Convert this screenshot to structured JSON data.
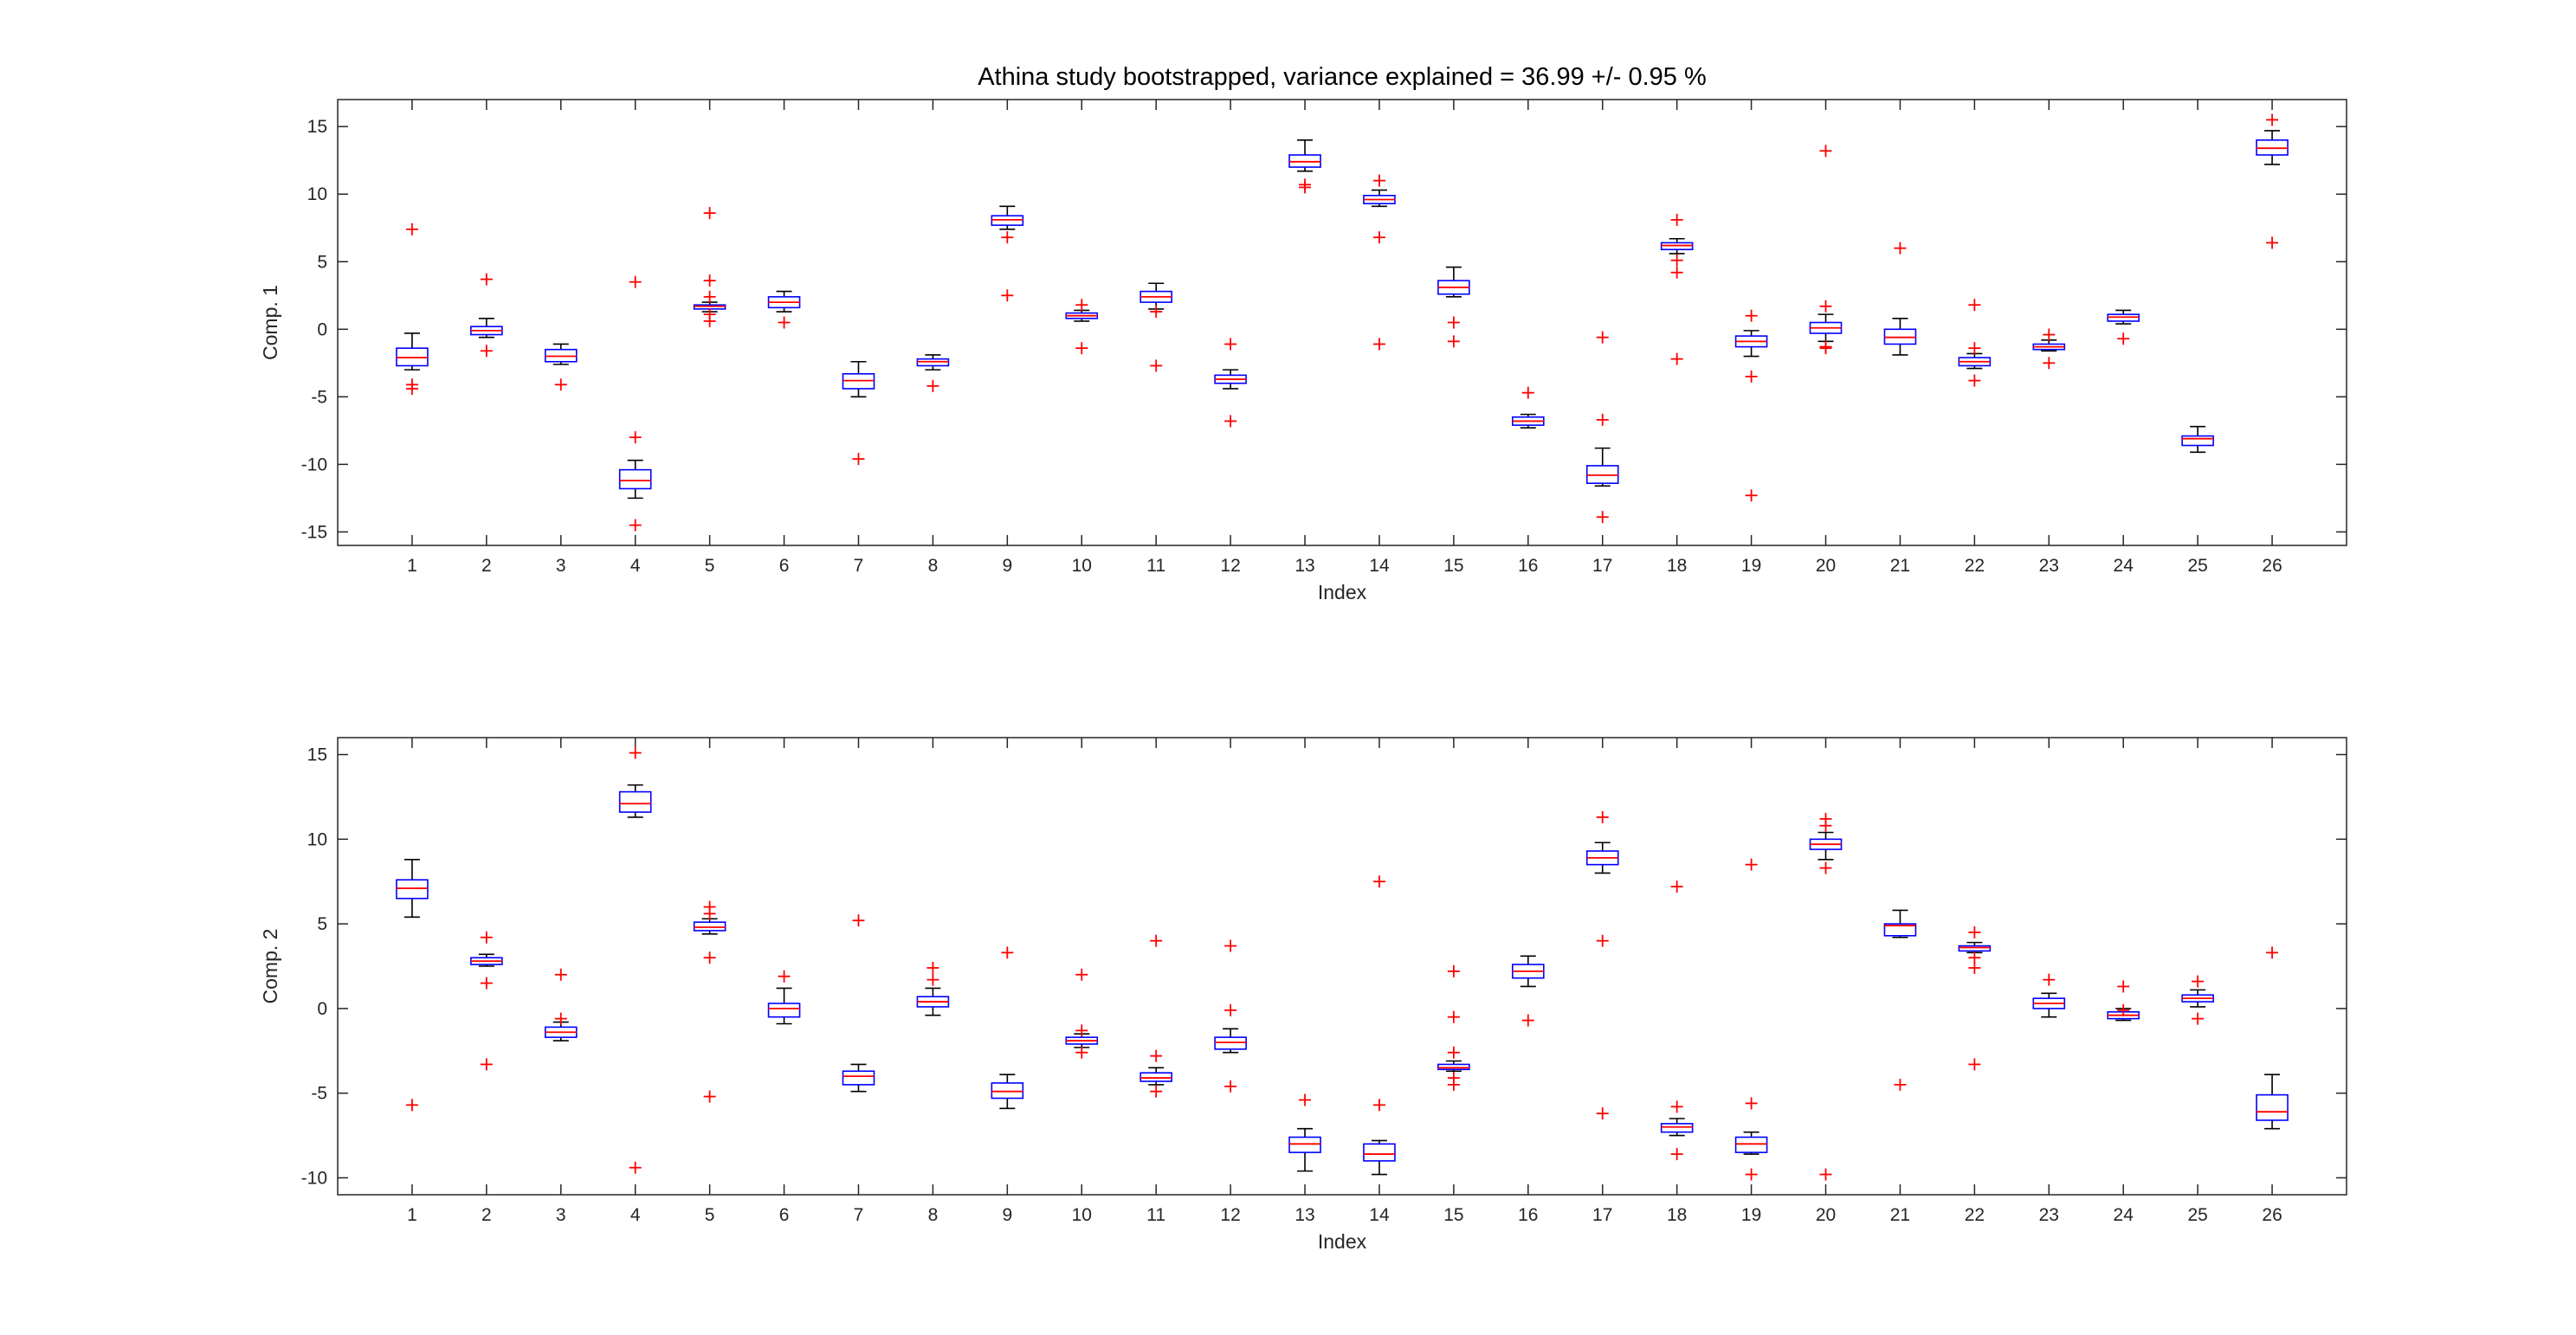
{
  "chart_data": [
    {
      "type": "box",
      "title": "Athina study bootstrapped, variance explained = 36.99 +/- 0.95 %",
      "xlabel": "Index",
      "ylabel": "Comp. 1",
      "ylim": [
        -16,
        17
      ],
      "yticks": [
        -15,
        -10,
        -5,
        0,
        5,
        10,
        15
      ],
      "categories": [
        "1",
        "2",
        "3",
        "4",
        "5",
        "6",
        "7",
        "8",
        "9",
        "10",
        "11",
        "12",
        "13",
        "14",
        "15",
        "16",
        "17",
        "18",
        "19",
        "20",
        "21",
        "22",
        "23",
        "24",
        "25",
        "26"
      ],
      "boxes": [
        {
          "lw": -3.0,
          "q1": -2.7,
          "median": -2.1,
          "q3": -1.4,
          "uw": -0.3,
          "outliers": [
            7.4,
            -4.1,
            -4.4
          ]
        },
        {
          "lw": -0.6,
          "q1": -0.4,
          "median": -0.1,
          "q3": 0.2,
          "uw": 0.8,
          "outliers": [
            3.7,
            -1.6
          ]
        },
        {
          "lw": -2.6,
          "q1": -2.4,
          "median": -2.0,
          "q3": -1.5,
          "uw": -1.1,
          "outliers": [
            -4.1
          ]
        },
        {
          "lw": -12.5,
          "q1": -11.8,
          "median": -11.2,
          "q3": -10.4,
          "uw": -9.7,
          "outliers": [
            3.5,
            -8.0,
            -14.5
          ]
        },
        {
          "lw": 1.3,
          "q1": 1.5,
          "median": 1.7,
          "q3": 1.8,
          "uw": 2.0,
          "outliers": [
            8.6,
            3.6,
            2.4,
            1.1,
            0.6
          ]
        },
        {
          "lw": 1.3,
          "q1": 1.6,
          "median": 2.0,
          "q3": 2.4,
          "uw": 2.8,
          "outliers": [
            0.5
          ]
        },
        {
          "lw": -5.0,
          "q1": -4.4,
          "median": -3.8,
          "q3": -3.3,
          "uw": -2.4,
          "outliers": [
            -9.6
          ]
        },
        {
          "lw": -3.0,
          "q1": -2.7,
          "median": -2.4,
          "q3": -2.2,
          "uw": -1.9,
          "outliers": [
            -4.2
          ]
        },
        {
          "lw": 7.4,
          "q1": 7.7,
          "median": 8.1,
          "q3": 8.4,
          "uw": 9.1,
          "outliers": [
            6.8,
            2.5
          ]
        },
        {
          "lw": 0.6,
          "q1": 0.8,
          "median": 1.0,
          "q3": 1.2,
          "uw": 1.4,
          "outliers": [
            1.8,
            -1.4
          ]
        },
        {
          "lw": 1.5,
          "q1": 2.0,
          "median": 2.4,
          "q3": 2.8,
          "uw": 3.4,
          "outliers": [
            1.3,
            -2.7
          ]
        },
        {
          "lw": -4.4,
          "q1": -4.0,
          "median": -3.7,
          "q3": -3.4,
          "uw": -3.0,
          "outliers": [
            -1.1,
            -6.8
          ]
        },
        {
          "lw": 11.7,
          "q1": 12.0,
          "median": 12.4,
          "q3": 12.9,
          "uw": 14.0,
          "outliers": [
            10.7,
            10.5
          ]
        },
        {
          "lw": 9.1,
          "q1": 9.3,
          "median": 9.6,
          "q3": 9.9,
          "uw": 10.3,
          "outliers": [
            11.0,
            6.8,
            -1.1
          ]
        },
        {
          "lw": 2.4,
          "q1": 2.6,
          "median": 3.1,
          "q3": 3.6,
          "uw": 4.6,
          "outliers": [
            0.5,
            -0.9
          ]
        },
        {
          "lw": -7.3,
          "q1": -7.1,
          "median": -6.8,
          "q3": -6.5,
          "uw": -6.3,
          "outliers": [
            -4.7
          ]
        },
        {
          "lw": -11.6,
          "q1": -11.4,
          "median": -10.8,
          "q3": -10.1,
          "uw": -8.8,
          "outliers": [
            -0.6,
            -6.7,
            -13.9
          ]
        },
        {
          "lw": 5.6,
          "q1": 5.9,
          "median": 6.2,
          "q3": 6.4,
          "uw": 6.7,
          "outliers": [
            8.1,
            5.1,
            4.2,
            -2.2
          ]
        },
        {
          "lw": -2.0,
          "q1": -1.3,
          "median": -0.9,
          "q3": -0.5,
          "uw": -0.1,
          "outliers": [
            1.0,
            -3.5,
            -12.3
          ]
        },
        {
          "lw": -0.9,
          "q1": -0.3,
          "median": 0.1,
          "q3": 0.5,
          "uw": 1.1,
          "outliers": [
            13.2,
            1.7,
            -1.3,
            -1.4
          ]
        },
        {
          "lw": -1.9,
          "q1": -1.1,
          "median": -0.6,
          "q3": 0.0,
          "uw": 0.8,
          "outliers": [
            6.0
          ]
        },
        {
          "lw": -2.9,
          "q1": -2.7,
          "median": -2.4,
          "q3": -2.1,
          "uw": -1.8,
          "outliers": [
            1.8,
            -1.4,
            -3.8
          ]
        },
        {
          "lw": -1.6,
          "q1": -1.5,
          "median": -1.3,
          "q3": -1.1,
          "uw": -0.8,
          "outliers": [
            -0.4,
            -2.5
          ]
        },
        {
          "lw": 0.4,
          "q1": 0.6,
          "median": 0.9,
          "q3": 1.1,
          "uw": 1.4,
          "outliers": [
            -0.7
          ]
        },
        {
          "lw": -9.1,
          "q1": -8.6,
          "median": -8.1,
          "q3": -7.9,
          "uw": -7.2,
          "outliers": []
        },
        {
          "lw": 12.2,
          "q1": 12.9,
          "median": 13.4,
          "q3": 14.0,
          "uw": 14.7,
          "outliers": [
            15.5,
            6.4
          ]
        }
      ]
    },
    {
      "type": "box",
      "xlabel": "Index",
      "ylabel": "Comp. 2",
      "ylim": [
        -11,
        16
      ],
      "yticks": [
        -10,
        -5,
        0,
        5,
        10,
        15
      ],
      "categories": [
        "1",
        "2",
        "3",
        "4",
        "5",
        "6",
        "7",
        "8",
        "9",
        "10",
        "11",
        "12",
        "13",
        "14",
        "15",
        "16",
        "17",
        "18",
        "19",
        "20",
        "21",
        "22",
        "23",
        "24",
        "25",
        "26"
      ],
      "boxes": [
        {
          "lw": 5.4,
          "q1": 6.5,
          "median": 7.1,
          "q3": 7.6,
          "uw": 8.8,
          "outliers": [
            -5.7
          ]
        },
        {
          "lw": 2.5,
          "q1": 2.6,
          "median": 2.8,
          "q3": 3.0,
          "uw": 3.2,
          "outliers": [
            4.2,
            1.5,
            -3.3
          ]
        },
        {
          "lw": -1.9,
          "q1": -1.7,
          "median": -1.4,
          "q3": -1.1,
          "uw": -0.8,
          "outliers": [
            2.0,
            -0.6
          ]
        },
        {
          "lw": 11.3,
          "q1": 11.6,
          "median": 12.1,
          "q3": 12.8,
          "uw": 13.2,
          "outliers": [
            15.1,
            -9.4
          ]
        },
        {
          "lw": 4.4,
          "q1": 4.6,
          "median": 4.8,
          "q3": 5.1,
          "uw": 5.3,
          "outliers": [
            6.0,
            5.6,
            3.0,
            -5.2
          ]
        },
        {
          "lw": -0.9,
          "q1": -0.5,
          "median": 0.0,
          "q3": 0.3,
          "uw": 1.2,
          "outliers": [
            1.9
          ]
        },
        {
          "lw": -4.9,
          "q1": -4.5,
          "median": -4.0,
          "q3": -3.7,
          "uw": -3.3,
          "outliers": [
            5.2
          ]
        },
        {
          "lw": -0.4,
          "q1": 0.1,
          "median": 0.4,
          "q3": 0.7,
          "uw": 1.2,
          "outliers": [
            2.4,
            1.7
          ]
        },
        {
          "lw": -5.9,
          "q1": -5.3,
          "median": -4.9,
          "q3": -4.4,
          "uw": -3.9,
          "outliers": [
            3.3
          ]
        },
        {
          "lw": -2.3,
          "q1": -2.1,
          "median": -1.9,
          "q3": -1.7,
          "uw": -1.5,
          "outliers": [
            2.0,
            -1.3,
            -2.6
          ]
        },
        {
          "lw": -4.5,
          "q1": -4.3,
          "median": -4.1,
          "q3": -3.8,
          "uw": -3.5,
          "outliers": [
            4.0,
            -2.8,
            -4.9
          ]
        },
        {
          "lw": -2.6,
          "q1": -2.4,
          "median": -2.0,
          "q3": -1.7,
          "uw": -1.2,
          "outliers": [
            3.7,
            -0.1,
            -4.6
          ]
        },
        {
          "lw": -9.6,
          "q1": -8.5,
          "median": -8.0,
          "q3": -7.6,
          "uw": -7.1,
          "outliers": [
            -5.4
          ]
        },
        {
          "lw": -9.8,
          "q1": -9.0,
          "median": -8.6,
          "q3": -8.0,
          "uw": -7.8,
          "outliers": [
            7.5,
            -5.7
          ]
        },
        {
          "lw": -3.7,
          "q1": -3.6,
          "median": -3.5,
          "q3": -3.3,
          "uw": -3.1,
          "outliers": [
            2.2,
            -0.5,
            -2.6,
            -4.1,
            -4.5
          ]
        },
        {
          "lw": 1.3,
          "q1": 1.8,
          "median": 2.2,
          "q3": 2.6,
          "uw": 3.1,
          "outliers": [
            -0.7
          ]
        },
        {
          "lw": 8.0,
          "q1": 8.5,
          "median": 8.9,
          "q3": 9.3,
          "uw": 9.8,
          "outliers": [
            11.3,
            4.0,
            -6.2
          ]
        },
        {
          "lw": -7.5,
          "q1": -7.3,
          "median": -7.0,
          "q3": -6.8,
          "uw": -6.5,
          "outliers": [
            7.2,
            -5.8,
            -8.6
          ]
        },
        {
          "lw": -8.6,
          "q1": -8.5,
          "median": -8.0,
          "q3": -7.6,
          "uw": -7.3,
          "outliers": [
            8.5,
            -5.6,
            -9.8
          ]
        },
        {
          "lw": 8.8,
          "q1": 9.4,
          "median": 9.7,
          "q3": 10.0,
          "uw": 10.4,
          "outliers": [
            11.2,
            10.8,
            8.3,
            -9.8
          ]
        },
        {
          "lw": 4.2,
          "q1": 4.3,
          "median": 4.9,
          "q3": 5.0,
          "uw": 5.8,
          "outliers": [
            -4.5
          ]
        },
        {
          "lw": 3.3,
          "q1": 3.4,
          "median": 3.6,
          "q3": 3.7,
          "uw": 3.9,
          "outliers": [
            4.5,
            3.0,
            2.4,
            -3.3
          ]
        },
        {
          "lw": -0.5,
          "q1": 0.0,
          "median": 0.3,
          "q3": 0.6,
          "uw": 0.9,
          "outliers": [
            1.7
          ]
        },
        {
          "lw": -0.7,
          "q1": -0.6,
          "median": -0.4,
          "q3": -0.2,
          "uw": 0.0,
          "outliers": [
            1.3,
            -0.1
          ]
        },
        {
          "lw": 0.1,
          "q1": 0.4,
          "median": 0.6,
          "q3": 0.8,
          "uw": 1.1,
          "outliers": [
            1.6,
            -0.6
          ]
        },
        {
          "lw": -7.1,
          "q1": -6.6,
          "median": -6.1,
          "q3": -5.1,
          "uw": -3.9,
          "outliers": [
            3.3
          ]
        }
      ]
    }
  ]
}
